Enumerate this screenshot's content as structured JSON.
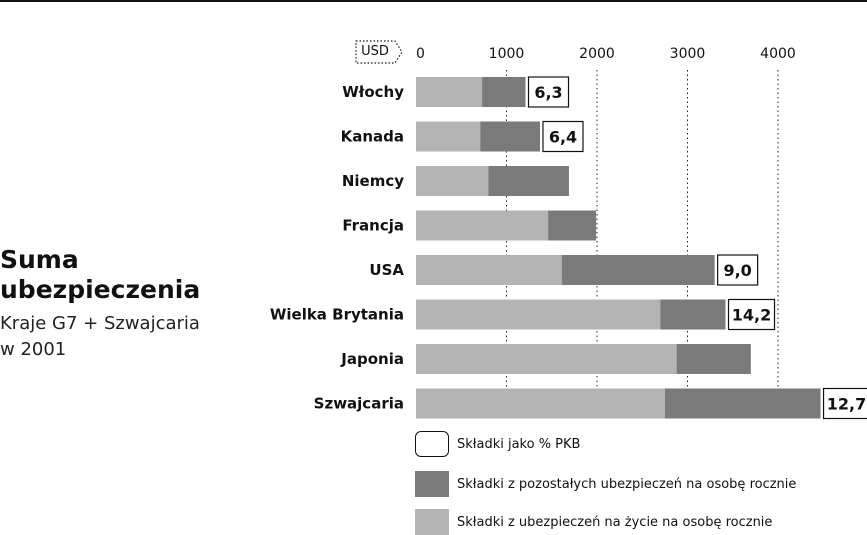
{
  "header": {
    "title_line1": "Suma",
    "title_line2": "ubezpieczenia",
    "subtitle_line1": "Kraje G7 + Szwajcaria",
    "subtitle_line2": "w 2001"
  },
  "unit_label": "USD",
  "legend": {
    "box_label": "Składki jako % PKB",
    "dark_label": "Składki z pozostałych ubezpieczeń na osobę rocznie",
    "light_label": "Składki z ubezpieczeń na życie na osobę rocznie"
  },
  "colors": {
    "life": "#b4b4b4",
    "other": "#7a7a7a",
    "grid": "#222222",
    "text": "#111111"
  },
  "chart_data": {
    "type": "bar",
    "orientation": "horizontal",
    "stacked": true,
    "xlim": [
      0,
      4500
    ],
    "xticks": [
      0,
      1000,
      2000,
      3000,
      4000
    ],
    "grid": "dotted vertical",
    "categories": [
      "Włochy",
      "Kanada",
      "Niemcy",
      "Francja",
      "USA",
      "Wielka Brytania",
      "Japonia",
      "Szwajcaria"
    ],
    "series": [
      {
        "name": "Składki z ubezpieczeń na życie na osobę rocznie",
        "values": [
          730,
          710,
          800,
          1460,
          1610,
          2700,
          2880,
          2750
        ]
      },
      {
        "name": "Składki z pozostałych ubezpieczeń na osobę rocznie",
        "values": [
          480,
          660,
          890,
          530,
          1690,
          720,
          820,
          1720
        ]
      }
    ],
    "gdp_share_labels": [
      "6,3",
      "6,4",
      "",
      "",
      "9,0",
      "14,2",
      "",
      "12,7"
    ]
  }
}
